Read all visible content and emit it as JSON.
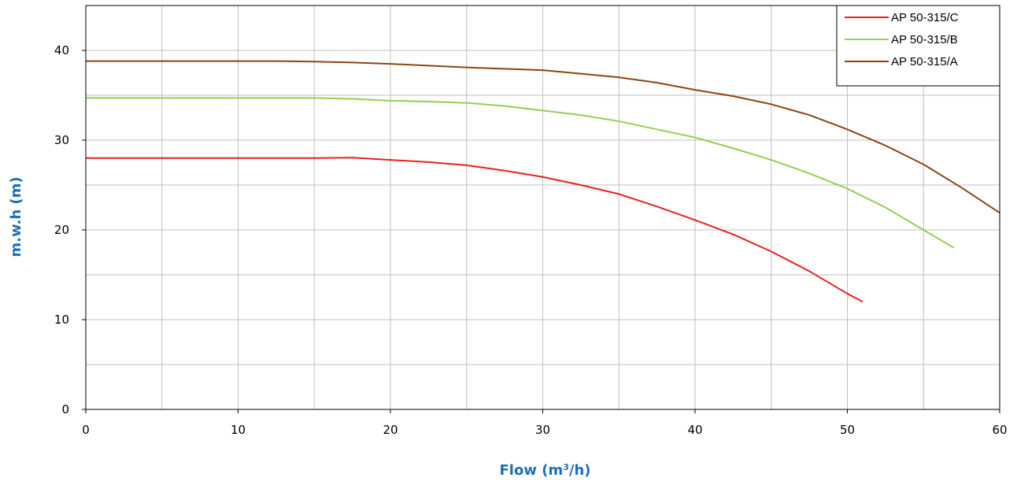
{
  "chart_data": {
    "type": "line",
    "xlabel": "Flow (m³/h)",
    "ylabel": "m.w.h (m)",
    "xlim": [
      0,
      60
    ],
    "ylim": [
      0,
      45
    ],
    "xticks": [
      "0",
      "10",
      "20",
      "30",
      "40",
      "50",
      "60"
    ],
    "yticks": [
      "0",
      "10",
      "20",
      "30",
      "40"
    ],
    "x_gridlines": [
      0,
      5,
      10,
      15,
      20,
      25,
      30,
      35,
      40,
      45,
      50,
      55,
      60
    ],
    "y_gridlines": [
      0,
      5,
      10,
      15,
      20,
      25,
      30,
      35,
      40,
      45
    ],
    "grid": true,
    "legend_position": "top-right",
    "axis_title_color": "#1f6fb5",
    "series": [
      {
        "name": "AP 50-315/C",
        "color": "#e8201f",
        "points": [
          [
            0,
            28
          ],
          [
            5,
            28
          ],
          [
            10,
            28
          ],
          [
            15,
            28
          ],
          [
            17.5,
            28.05
          ],
          [
            20,
            27.8
          ],
          [
            22.5,
            27.55
          ],
          [
            25,
            27.2
          ],
          [
            27.5,
            26.6
          ],
          [
            30,
            25.9
          ],
          [
            32.5,
            25
          ],
          [
            35,
            24
          ],
          [
            37.5,
            22.6
          ],
          [
            40,
            21.1
          ],
          [
            42.5,
            19.5
          ],
          [
            45,
            17.6
          ],
          [
            47.5,
            15.4
          ],
          [
            50,
            12.9
          ],
          [
            51,
            12
          ]
        ]
      },
      {
        "name": "AP 50-315/B",
        "color": "#92d050",
        "points": [
          [
            0,
            34.7
          ],
          [
            5,
            34.7
          ],
          [
            10,
            34.7
          ],
          [
            15,
            34.7
          ],
          [
            17.5,
            34.6
          ],
          [
            20,
            34.4
          ],
          [
            22.5,
            34.3
          ],
          [
            25,
            34.15
          ],
          [
            27.5,
            33.8
          ],
          [
            30,
            33.3
          ],
          [
            32.5,
            32.8
          ],
          [
            35,
            32.1
          ],
          [
            37.5,
            31.2
          ],
          [
            40,
            30.3
          ],
          [
            42.5,
            29.1
          ],
          [
            45,
            27.8
          ],
          [
            47.5,
            26.3
          ],
          [
            50,
            24.6
          ],
          [
            52.5,
            22.5
          ],
          [
            55,
            20
          ],
          [
            57,
            18
          ]
        ]
      },
      {
        "name": "AP 50-315/A",
        "color": "#8b4513",
        "points": [
          [
            0,
            38.8
          ],
          [
            5,
            38.8
          ],
          [
            10,
            38.8
          ],
          [
            12.5,
            38.8
          ],
          [
            15,
            38.75
          ],
          [
            17.5,
            38.65
          ],
          [
            20,
            38.5
          ],
          [
            22.5,
            38.3
          ],
          [
            25,
            38.1
          ],
          [
            27.5,
            37.95
          ],
          [
            30,
            37.8
          ],
          [
            32.5,
            37.4
          ],
          [
            35,
            37
          ],
          [
            37.5,
            36.4
          ],
          [
            40,
            35.6
          ],
          [
            42.5,
            34.9
          ],
          [
            45,
            34
          ],
          [
            47.5,
            32.8
          ],
          [
            50,
            31.2
          ],
          [
            52.5,
            29.4
          ],
          [
            55,
            27.3
          ],
          [
            57.5,
            24.7
          ],
          [
            60,
            21.9
          ]
        ]
      }
    ]
  }
}
